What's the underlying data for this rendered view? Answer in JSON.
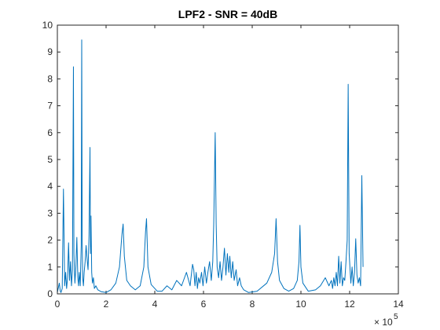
{
  "chart_data": {
    "type": "line",
    "title": "LPF2 - SNR = 40dB",
    "xlabel": "",
    "ylabel": "",
    "xlim": [
      0,
      1400000
    ],
    "ylim": [
      0,
      10
    ],
    "x_ticks": [
      0,
      200000,
      400000,
      600000,
      800000,
      1000000,
      1200000,
      1400000
    ],
    "x_tick_labels": [
      "0",
      "2",
      "4",
      "6",
      "8",
      "10",
      "12",
      "14"
    ],
    "x_exponent_base": "× 10",
    "x_exponent_power": "5",
    "y_ticks": [
      0,
      1,
      2,
      3,
      4,
      5,
      6,
      7,
      8,
      9,
      10
    ],
    "y_tick_labels": [
      "0",
      "1",
      "2",
      "3",
      "4",
      "5",
      "6",
      "7",
      "8",
      "9",
      "10"
    ],
    "grid": false,
    "box": true,
    "line_color": "#0072BD",
    "series": [
      {
        "name": "",
        "x": [
          0,
          8000,
          12000,
          15000,
          20000,
          25000,
          30000,
          34000,
          38000,
          42000,
          46000,
          50000,
          54000,
          58000,
          62000,
          66000,
          68000,
          70000,
          72000,
          76000,
          80000,
          84000,
          87000,
          90000,
          94000,
          98000,
          100000,
          102000,
          104000,
          107000,
          110000,
          114000,
          118000,
          122000,
          126000,
          130000,
          134000,
          136000,
          138000,
          141000,
          144000,
          148000,
          152000,
          158000,
          166000,
          180000,
          200000,
          220000,
          240000,
          255000,
          265000,
          270000,
          275000,
          285000,
          300000,
          320000,
          340000,
          355000,
          362000,
          366000,
          372000,
          385000,
          410000,
          430000,
          450000,
          470000,
          490000,
          510000,
          530000,
          545000,
          555000,
          560000,
          565000,
          570000,
          575000,
          580000,
          585000,
          592000,
          598000,
          605000,
          612000,
          618000,
          625000,
          632000,
          638000,
          642000,
          648000,
          652000,
          656000,
          662000,
          668000,
          674000,
          680000,
          686000,
          692000,
          698000,
          704000,
          708000,
          714000,
          720000,
          726000,
          734000,
          740000,
          748000,
          755000,
          765000,
          785000,
          820000,
          860000,
          880000,
          892000,
          898000,
          904000,
          912000,
          930000,
          950000,
          970000,
          985000,
          992000,
          996000,
          1000000,
          1008000,
          1030000,
          1060000,
          1080000,
          1100000,
          1115000,
          1125000,
          1130000,
          1135000,
          1140000,
          1145000,
          1150000,
          1155000,
          1160000,
          1165000,
          1170000,
          1175000,
          1180000,
          1185000,
          1190000,
          1194000,
          1198000,
          1205000,
          1210000,
          1215000,
          1220000,
          1225000,
          1230000,
          1235000,
          1240000,
          1245000,
          1250000,
          1255000
        ],
        "y": [
          0.05,
          0.4,
          0.1,
          0.05,
          0.2,
          3.9,
          0.3,
          0.8,
          0.2,
          0.6,
          1.9,
          0.5,
          1.2,
          0.3,
          0.9,
          8.45,
          1.5,
          0.9,
          0.4,
          1.0,
          2.1,
          0.6,
          0.3,
          0.8,
          0.3,
          1.8,
          9.45,
          2.0,
          0.6,
          0.3,
          0.8,
          1.2,
          1.8,
          1.3,
          0.9,
          2.2,
          5.45,
          1.5,
          2.9,
          0.8,
          0.4,
          0.6,
          0.2,
          0.3,
          0.15,
          0.08,
          0.05,
          0.15,
          0.4,
          1.0,
          2.2,
          2.6,
          1.4,
          0.5,
          0.3,
          0.15,
          0.3,
          1.0,
          2.3,
          2.8,
          1.0,
          0.35,
          0.1,
          0.1,
          0.3,
          0.15,
          0.5,
          0.3,
          0.8,
          0.3,
          1.1,
          0.9,
          0.3,
          0.8,
          0.2,
          0.6,
          0.4,
          0.8,
          0.3,
          1.0,
          0.4,
          0.8,
          1.2,
          0.5,
          1.2,
          2.6,
          6.0,
          2.6,
          1.0,
          0.6,
          1.2,
          0.5,
          1.0,
          1.7,
          0.7,
          1.5,
          0.8,
          1.4,
          0.6,
          1.2,
          0.5,
          0.9,
          0.3,
          0.6,
          0.3,
          0.15,
          0.05,
          0.1,
          0.4,
          0.8,
          1.5,
          2.8,
          1.2,
          0.5,
          0.2,
          0.1,
          0.2,
          0.5,
          1.2,
          2.55,
          1.0,
          0.4,
          0.1,
          0.15,
          0.3,
          0.6,
          0.3,
          0.5,
          0.2,
          0.6,
          0.3,
          0.8,
          0.3,
          1.4,
          0.4,
          1.2,
          0.3,
          0.6,
          0.5,
          1.2,
          2.0,
          7.8,
          1.5,
          0.4,
          1.0,
          0.3,
          0.8,
          2.05,
          0.7,
          0.4,
          0.6,
          0.3,
          4.4,
          1.0
        ]
      }
    ]
  }
}
